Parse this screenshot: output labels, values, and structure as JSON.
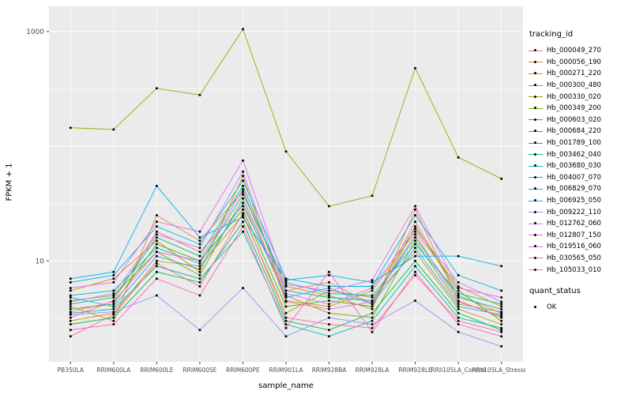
{
  "chart_data": {
    "type": "line",
    "title": "",
    "xlabel": "sample_name",
    "ylabel": "FPKM + 1",
    "yscale": "log10",
    "ylog_domain": [
      0.12,
      3.22
    ],
    "yticks": [
      {
        "value": 1000,
        "label": "1000"
      },
      {
        "value": 10,
        "label": "10"
      }
    ],
    "grid_major_log": [
      1,
      2,
      3
    ],
    "grid_minor_log": [
      0.5,
      1.5,
      2.5
    ],
    "panel_bg": "#EBEBEB",
    "grid_color": "#FFFFFF",
    "point_color": "#000000",
    "tick_text_color": "#4D4D4D",
    "categories": [
      "PB350LA",
      "RRIM600LA",
      "RRIM600LE",
      "RRIM600SE",
      "RRIM600PE",
      "RRIM901LA",
      "RRIM928BA",
      "RRIM928LA",
      "RRIM928LE",
      "RRII105LA_Control",
      "RRII105LA_Stressed"
    ],
    "series": [
      {
        "name": "Hb_000049_270",
        "color": "#F8766D",
        "values": [
          3.2,
          4.5,
          18,
          12,
          30,
          5.5,
          6.5,
          4.2,
          22,
          5.0,
          3.5
        ]
      },
      {
        "name": "Hb_000056_190",
        "color": "#EA8331",
        "values": [
          4.0,
          3.0,
          25,
          15,
          40,
          6.0,
          5.0,
          3.8,
          28,
          4.5,
          3.2
        ]
      },
      {
        "name": "Hb_000271_220",
        "color": "#D89000",
        "values": [
          5.5,
          7.0,
          15,
          8.0,
          55,
          4.5,
          4.0,
          5.5,
          18,
          6.0,
          4.0
        ]
      },
      {
        "name": "Hb_000300_480",
        "color": "#C09B00",
        "values": [
          3.0,
          3.5,
          10,
          9.0,
          25,
          3.5,
          5.5,
          4.8,
          12,
          3.8,
          2.8
        ]
      },
      {
        "name": "Hb_000330_020",
        "color": "#A3A500",
        "values": [
          145,
          140,
          320,
          280,
          1050,
          90,
          30,
          37,
          480,
          80,
          52
        ]
      },
      {
        "name": "Hb_000349_200",
        "color": "#7CAE00",
        "values": [
          4.5,
          5.0,
          12,
          7.5,
          35,
          5.0,
          3.5,
          3.2,
          15,
          4.2,
          3.6
        ]
      },
      {
        "name": "Hb_000603_020",
        "color": "#39B600",
        "values": [
          3.8,
          4.2,
          14,
          10,
          28,
          4.0,
          4.5,
          4.0,
          20,
          5.5,
          3.0
        ]
      },
      {
        "name": "Hb_000684_220",
        "color": "#00BB4E",
        "values": [
          2.8,
          3.2,
          8.0,
          6.5,
          22,
          3.0,
          2.5,
          3.5,
          10,
          3.5,
          2.5
        ]
      },
      {
        "name": "Hb_001789_100",
        "color": "#00BF7D",
        "values": [
          4.2,
          4.8,
          16,
          11,
          45,
          5.5,
          4.8,
          4.5,
          16,
          4.8,
          3.8
        ]
      },
      {
        "name": "Hb_003462_040",
        "color": "#00C1A3",
        "values": [
          3.5,
          3.8,
          9.0,
          7.0,
          18,
          2.8,
          2.2,
          3.0,
          9.0,
          3.2,
          2.6
        ]
      },
      {
        "name": "Hb_003680_030",
        "color": "#00BFC4",
        "values": [
          5.0,
          5.5,
          13,
          9.5,
          38,
          6.5,
          5.2,
          5.0,
          14,
          5.2,
          4.2
        ]
      },
      {
        "name": "Hb_004007_070",
        "color": "#00BAE0",
        "values": [
          6.5,
          7.5,
          20,
          14,
          50,
          7.0,
          6.0,
          6.0,
          25,
          7.5,
          5.5
        ]
      },
      {
        "name": "Hb_006829_070",
        "color": "#00B0F6",
        "values": [
          7.0,
          8.0,
          45,
          16,
          24,
          6.8,
          7.5,
          6.5,
          11,
          11,
          9.0
        ]
      },
      {
        "name": "Hb_006925_050",
        "color": "#35A2FF",
        "values": [
          4.8,
          4.0,
          11,
          8.5,
          32,
          4.8,
          5.8,
          4.2,
          13,
          4.0,
          3.4
        ]
      },
      {
        "name": "Hb_009222_110",
        "color": "#9590FF",
        "values": [
          3.4,
          3.6,
          5.0,
          2.5,
          5.8,
          2.2,
          3.2,
          2.8,
          4.5,
          2.4,
          1.8
        ]
      },
      {
        "name": "Hb_012762_060",
        "color": "#C77CFF",
        "values": [
          4.4,
          5.2,
          17,
          13,
          60,
          5.2,
          4.2,
          5.8,
          19,
          6.5,
          4.4
        ]
      },
      {
        "name": "Hb_012807_150",
        "color": "#E76BF3",
        "values": [
          5.8,
          6.5,
          22,
          18,
          75,
          6.2,
          5.5,
          6.8,
          30,
          5.8,
          4.8
        ]
      },
      {
        "name": "Hb_019516_060",
        "color": "#FA62DB",
        "values": [
          3.6,
          4.4,
          12,
          10,
          42,
          4.4,
          3.8,
          4.4,
          17,
          4.4,
          3.3
        ]
      },
      {
        "name": "Hb_030565_050",
        "color": "#FF62BC",
        "values": [
          2.5,
          2.8,
          7.0,
          5.0,
          20,
          2.6,
          8.0,
          2.4,
          8.0,
          2.8,
          2.2
        ]
      },
      {
        "name": "Hb_105033_010",
        "color": "#FF6A98",
        "values": [
          2.2,
          3.4,
          9.5,
          6.0,
          26,
          3.2,
          2.8,
          2.6,
          7.5,
          3.0,
          2.4
        ]
      }
    ]
  },
  "legend": {
    "tracking_title": "tracking_id",
    "quant_title": "quant_status",
    "quant_items": [
      {
        "label": "OK"
      }
    ]
  }
}
